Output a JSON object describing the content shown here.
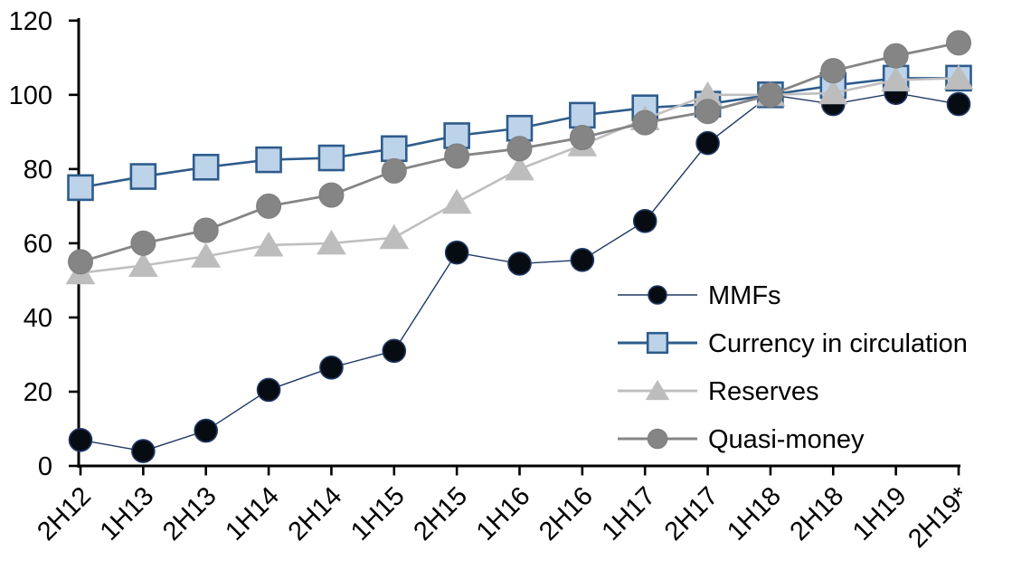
{
  "chart_data": {
    "type": "line",
    "title": "",
    "xlabel": "",
    "ylabel": "",
    "grid": false,
    "background": "#FFFFFF",
    "axis_color": "#000000",
    "ylim": [
      0,
      120
    ],
    "yticks": [
      0,
      20,
      40,
      60,
      80,
      100,
      120
    ],
    "legend_position": "inside-right",
    "categories": [
      "2H12",
      "1H13",
      "2H13",
      "1H14",
      "2H14",
      "1H15",
      "2H15",
      "1H16",
      "2H16",
      "1H17",
      "2H17",
      "1H18",
      "2H18",
      "1H19",
      "2H19*"
    ],
    "series": [
      {
        "name": "MMFs",
        "marker": "circle",
        "line_color": "#1F3864",
        "marker_fill": "#070B12",
        "marker_stroke": "#1F3864",
        "line_width": 1.4,
        "values": [
          7,
          4,
          9.5,
          20.5,
          26.5,
          31,
          57.5,
          54.5,
          55.5,
          66,
          87,
          100,
          97.5,
          100.5,
          97.5
        ]
      },
      {
        "name": "Currency in circulation",
        "marker": "square",
        "line_color": "#2E5C8C",
        "marker_fill": "#BDD3EA",
        "marker_stroke": "#2E5C8C",
        "line_width": 2.6,
        "values": [
          75,
          78,
          80.5,
          82.5,
          83,
          85.5,
          89,
          91,
          94.5,
          96.5,
          97.5,
          100,
          102.5,
          104.5,
          104.5
        ]
      },
      {
        "name": "Reserves",
        "marker": "triangle",
        "line_color": "#BFBFBF",
        "marker_fill": "#BDBDBD",
        "marker_stroke": "#BDBDBD",
        "line_width": 2.6,
        "values": [
          52,
          54,
          56.5,
          59.5,
          60,
          61.5,
          71,
          80,
          86.5,
          93.5,
          100,
          100,
          100.5,
          104,
          104.5
        ]
      },
      {
        "name": "Quasi-money",
        "marker": "circle",
        "line_color": "#858585",
        "marker_fill": "#858585",
        "marker_stroke": "#7F7F7F",
        "line_width": 2.8,
        "values": [
          55,
          60,
          63.5,
          70,
          73,
          79.5,
          83.5,
          85.5,
          88.5,
          92.5,
          95.5,
          100,
          106.5,
          110.5,
          114
        ]
      }
    ],
    "legend_entries": [
      "MMFs",
      "Currency in circulation",
      "Reserves",
      "Quasi-money"
    ],
    "footnote_marker": "*"
  }
}
